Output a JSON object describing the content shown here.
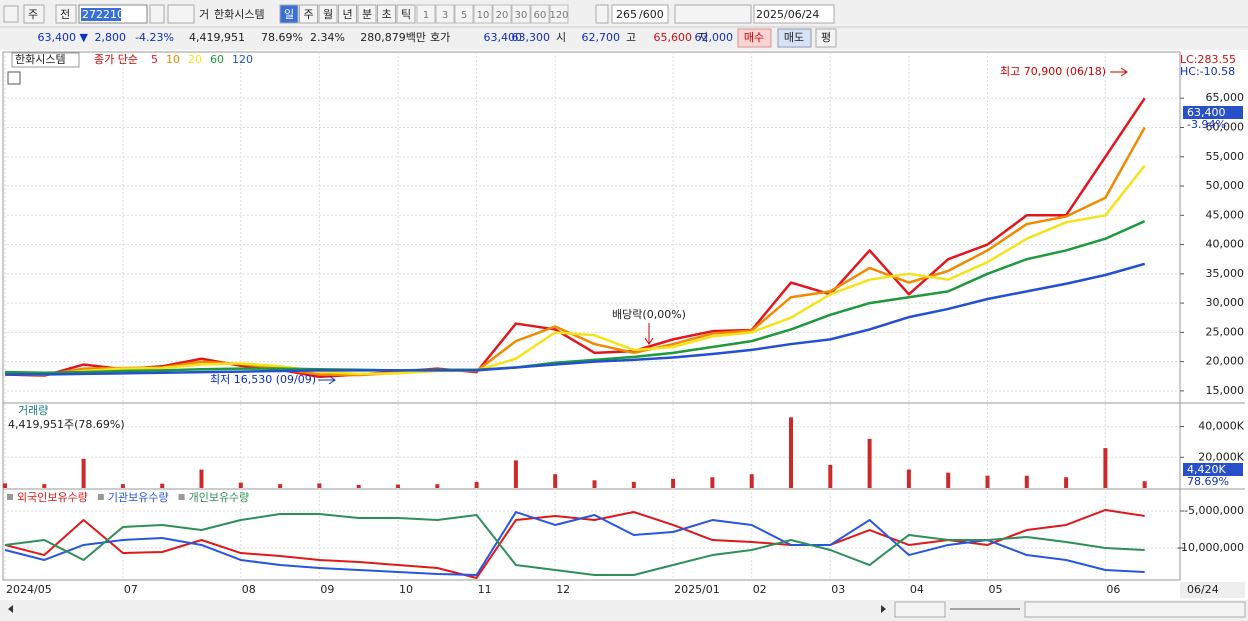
{
  "toolbar": {
    "period_label": "주",
    "prev_label": "전",
    "code": "272210",
    "trade_label": "거",
    "stock_name": "한화시스템",
    "intervals": [
      "일",
      "주",
      "월",
      "년",
      "분",
      "초",
      "틱"
    ],
    "minutes": [
      "1",
      "3",
      "5",
      "10",
      "20",
      "30",
      "60",
      "120"
    ],
    "count": "265",
    "count_max": "/600",
    "date": "2025/06/24"
  },
  "info_bar": {
    "price": "63,400 ▼",
    "change": "2,800",
    "change_pct": "-4.23%",
    "volume": "4,419,951",
    "volume_pct": "78.69%",
    "turnover": "2.34%",
    "amount": "280,879백만",
    "quote_label": "호가",
    "ask": "63,400",
    "bid": "63,300",
    "open_label": "시",
    "open": "62,700",
    "high_label": "고",
    "high": "65,600",
    "low_label": "저",
    "low": "62,000",
    "buy": "매수",
    "sell": "매도",
    "avg": "평"
  },
  "chart_data": [
    {
      "type": "line",
      "title": "한화시스템",
      "subtitle": "종가 단순",
      "lc": "LC:283.55",
      "hc": "HC:-10.58",
      "last_label": "63,400",
      "last_pct": "-3.94%",
      "last_date_label": "06/24",
      "annotations": [
        "최고 70,900 (06/18)",
        "최저 16,530 (09/09)",
        "배당락(0,00%)"
      ],
      "categories": [
        "2024/05",
        null,
        null,
        "07",
        null,
        null,
        "08",
        null,
        "09",
        null,
        "10",
        null,
        "11",
        null,
        "12",
        null,
        null,
        "2025/01",
        null,
        "02",
        null,
        "03",
        null,
        "04",
        null,
        "05",
        null,
        null,
        "06",
        null
      ],
      "ylim": [
        13100,
        72900
      ],
      "grid": true,
      "yticks": [
        {
          "value": 15000,
          "label": "15,000"
        },
        {
          "value": 20000,
          "label": "20,000"
        },
        {
          "value": 25000,
          "label": "25,000"
        },
        {
          "value": 30000,
          "label": "30,000"
        },
        {
          "value": 35000,
          "label": "35,000"
        },
        {
          "value": 40000,
          "label": "40,000"
        },
        {
          "value": 45000,
          "label": "45,000"
        },
        {
          "value": 50000,
          "label": "50,000"
        },
        {
          "value": 55000,
          "label": "55,000"
        },
        {
          "value": 60000,
          "label": "60,000"
        },
        {
          "value": 65000,
          "label": "65,000"
        }
      ],
      "series": [
        {
          "name": "5",
          "color": "#e3161f",
          "values": [
            17800,
            17600,
            19500,
            18700,
            19200,
            20500,
            19300,
            18600,
            17400,
            17800,
            18300,
            18800,
            18200,
            26500,
            25500,
            21500,
            21800,
            23800,
            25200,
            25400,
            33500,
            31500,
            39000,
            31500,
            37500,
            40000,
            45000,
            45000,
            55000,
            65000
          ]
        },
        {
          "name": "10",
          "color": "#f08a00",
          "values": [
            17900,
            17700,
            18800,
            18900,
            19000,
            20000,
            19600,
            18800,
            17800,
            17700,
            18100,
            18600,
            18400,
            23500,
            26000,
            23000,
            21500,
            23000,
            24800,
            25300,
            31000,
            32000,
            36000,
            33500,
            35500,
            39000,
            43500,
            44800,
            48000,
            60000
          ]
        },
        {
          "name": "20",
          "color": "#f5e31a",
          "values": [
            18000,
            17800,
            18400,
            18800,
            18900,
            19500,
            19700,
            19200,
            18300,
            17900,
            18000,
            18400,
            18500,
            20500,
            25000,
            24500,
            22000,
            22500,
            24300,
            25000,
            27500,
            31500,
            34000,
            35000,
            34000,
            37000,
            41000,
            43800,
            45000,
            53500
          ]
        },
        {
          "name": "60",
          "color": "#1e9a3c",
          "values": [
            18200,
            18100,
            18200,
            18400,
            18500,
            18700,
            18800,
            18800,
            18700,
            18600,
            18500,
            18600,
            18600,
            19000,
            19800,
            20300,
            20800,
            21500,
            22500,
            23500,
            25500,
            28000,
            30000,
            31000,
            32000,
            35000,
            37500,
            39000,
            41000,
            44000
          ]
        },
        {
          "name": "120",
          "color": "#2350d2",
          "values": [
            17800,
            17800,
            17900,
            18000,
            18100,
            18200,
            18300,
            18400,
            18500,
            18500,
            18500,
            18500,
            18500,
            19000,
            19500,
            20000,
            20300,
            20700,
            21300,
            22000,
            23000,
            23800,
            25500,
            27600,
            29000,
            30700,
            32000,
            33300,
            34800,
            36700
          ]
        }
      ]
    },
    {
      "type": "bar",
      "title": "거래량",
      "subtitle": "4,419,951주(78.69%)",
      "last_label": "4,420K",
      "last_pct": "78.69%",
      "color": "#cc2a2a",
      "ylim": [
        0,
        54700
      ],
      "grid": true,
      "yticks": [
        {
          "value": 20000,
          "label": "20,000K"
        },
        {
          "value": 40000,
          "label": "40,000K"
        }
      ],
      "values": [
        3000,
        2500,
        19000,
        2500,
        2800,
        12000,
        3500,
        2500,
        3000,
        2000,
        2200,
        2500,
        4000,
        18000,
        9000,
        5000,
        4000,
        6000,
        7000,
        9000,
        46000,
        15000,
        32000,
        12000,
        10000,
        8000,
        8000,
        7000,
        26000,
        4420
      ]
    },
    {
      "type": "line",
      "ylim": [
        -14324000,
        -2162000
      ],
      "grid": true,
      "yticks": [
        {
          "value": -5000000,
          "label": "-5,000,000"
        },
        {
          "value": -10000000,
          "label": "-10,000,000"
        }
      ],
      "series": [
        {
          "name": "외국인보유수량",
          "color": "#e01818",
          "values": [
            -9590000,
            -10950000,
            -6220000,
            -10680000,
            -10540000,
            -8920000,
            -10680000,
            -11080000,
            -11620000,
            -11890000,
            -12300000,
            -12700000,
            -14050000,
            -6220000,
            -5680000,
            -6220000,
            -5140000,
            -6890000,
            -8920000,
            -9190000,
            -9590000,
            -9590000,
            -7570000,
            -9590000,
            -8920000,
            -9590000,
            -7570000,
            -6890000,
            -4860000,
            -5680000
          ]
        },
        {
          "name": "기관보유수량",
          "color": "#2856e0",
          "values": [
            -10270000,
            -11620000,
            -9590000,
            -8920000,
            -8650000,
            -9590000,
            -11620000,
            -12300000,
            -12700000,
            -12970000,
            -13240000,
            -13510000,
            -13650000,
            -5140000,
            -6890000,
            -5540000,
            -8240000,
            -7840000,
            -6220000,
            -6890000,
            -9590000,
            -9590000,
            -6220000,
            -10950000,
            -9590000,
            -8920000,
            -10950000,
            -11620000,
            -12970000,
            -13240000
          ]
        },
        {
          "name": "개인보유수량",
          "color": "#2e8f5a",
          "values": [
            -9590000,
            -8920000,
            -11620000,
            -7160000,
            -6890000,
            -7570000,
            -6220000,
            -5410000,
            -5410000,
            -5950000,
            -5950000,
            -6220000,
            -5540000,
            -12300000,
            -12970000,
            -13650000,
            -13650000,
            -12300000,
            -10950000,
            -10270000,
            -8920000,
            -10270000,
            -12300000,
            -8240000,
            -8920000,
            -8920000,
            -8510000,
            -9190000,
            -10000000,
            -10270000
          ]
        }
      ]
    }
  ]
}
